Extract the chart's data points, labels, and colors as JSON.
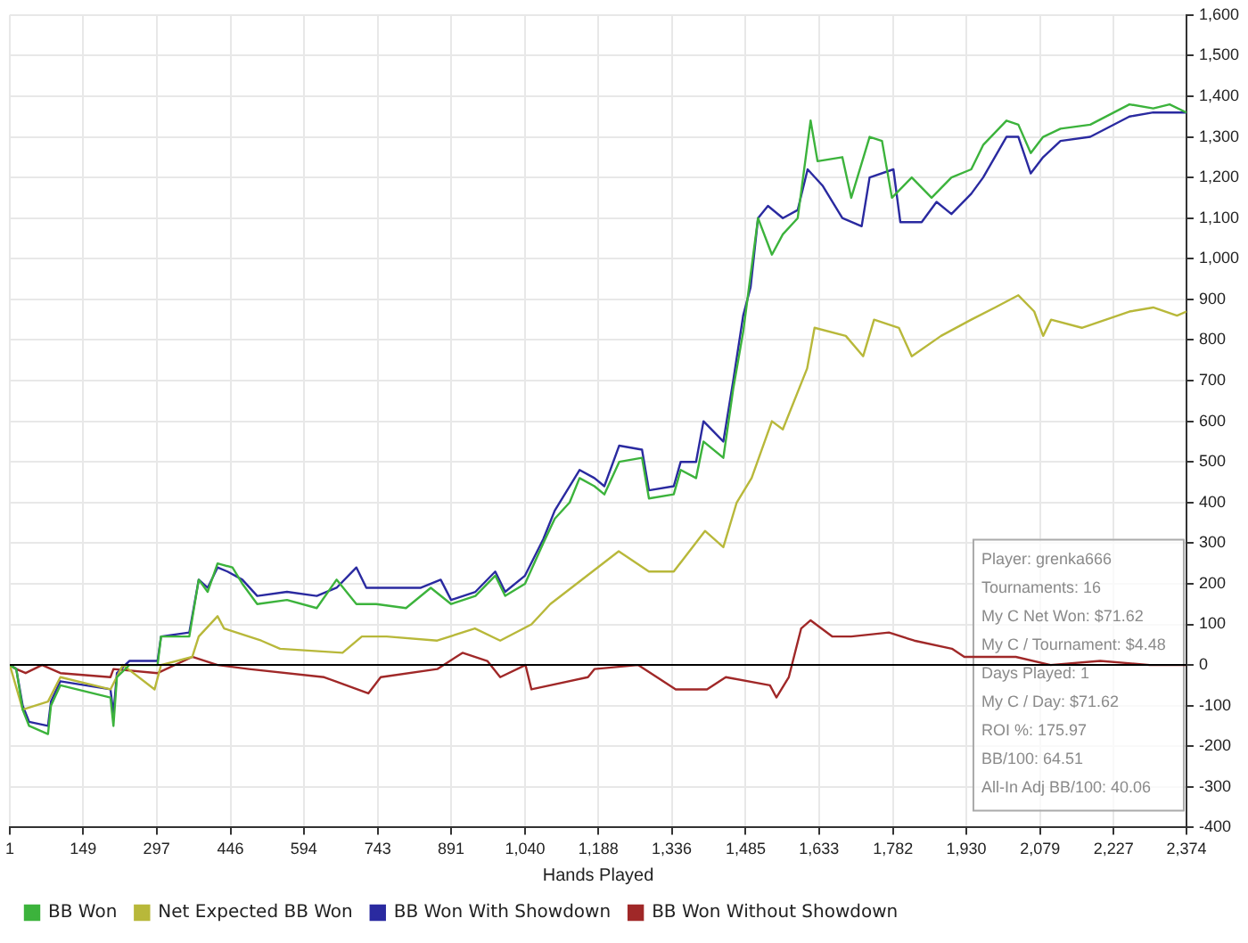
{
  "chart_data": {
    "type": "line",
    "xlabel": "Hands Played",
    "xlim": [
      1,
      2374
    ],
    "xticks": [
      1,
      149,
      297,
      446,
      594,
      743,
      891,
      {
        "value": 1040,
        "label": "1,040"
      },
      {
        "value": 1188,
        "label": "1,188"
      },
      {
        "value": 1336,
        "label": "1,336"
      },
      {
        "value": 1485,
        "label": "1,485"
      },
      {
        "value": 1633,
        "label": "1,633"
      },
      {
        "value": 1782,
        "label": "1,782"
      },
      {
        "value": 1930,
        "label": "1,930"
      },
      {
        "value": 2079,
        "label": "2,079"
      },
      {
        "value": 2227,
        "label": "2,227"
      },
      {
        "value": 2374,
        "label": "2,374"
      }
    ],
    "ylim": [
      -400,
      1600
    ],
    "yticks": [
      -400,
      -300,
      -200,
      -100,
      0,
      100,
      200,
      300,
      400,
      500,
      600,
      700,
      800,
      900,
      {
        "value": 1000,
        "label": "1,000"
      },
      {
        "value": 1100,
        "label": "1,100"
      },
      {
        "value": 1200,
        "label": "1,200"
      },
      {
        "value": 1300,
        "label": "1,300"
      },
      {
        "value": 1400,
        "label": "1,400"
      },
      {
        "value": 1500,
        "label": "1,500"
      },
      {
        "value": 1600,
        "label": "1,600"
      }
    ],
    "grid": true,
    "legend": "bottom",
    "marker": "none",
    "line_style": "solid",
    "ref_lines": [
      {
        "axis": "y",
        "value": 0,
        "color": "#000000"
      }
    ],
    "annotations": [
      "Player: grenka666",
      "Tournaments: 16",
      "My C Net Won: $71.62",
      "My C / Tournament: $4.48",
      "Days Played: 1",
      "My C / Day: $71.62",
      "ROI %: 175.97",
      "BB/100: 64.51",
      "All-In Adj BB/100: 40.06"
    ],
    "series": [
      {
        "name": "BB Won",
        "color": "#3cb33c",
        "x": [
          1,
          14,
          27,
          40,
          78,
          84,
          103,
          204,
          210,
          217,
          242,
          299,
          306,
          363,
          382,
          400,
          420,
          450,
          470,
          500,
          560,
          620,
          660,
          700,
          740,
          800,
          850,
          891,
          940,
          980,
          1000,
          1040,
          1077,
          1100,
          1130,
          1150,
          1180,
          1200,
          1230,
          1276,
          1290,
          1340,
          1354,
          1385,
          1400,
          1440,
          1460,
          1480,
          1495,
          1510,
          1538,
          1560,
          1590,
          1616,
          1630,
          1680,
          1698,
          1735,
          1760,
          1780,
          1820,
          1860,
          1900,
          1940,
          1964,
          2011,
          2035,
          2060,
          2085,
          2120,
          2180,
          2259,
          2307,
          2340,
          2374
        ],
        "values": [
          0,
          -10,
          -110,
          -150,
          -170,
          -100,
          -50,
          -80,
          -150,
          -30,
          0,
          0,
          70,
          70,
          210,
          180,
          250,
          240,
          200,
          150,
          160,
          140,
          210,
          150,
          150,
          140,
          190,
          150,
          170,
          220,
          170,
          200,
          300,
          360,
          400,
          460,
          440,
          420,
          500,
          510,
          410,
          420,
          480,
          460,
          550,
          510,
          680,
          820,
          960,
          1100,
          1010,
          1060,
          1100,
          1340,
          1240,
          1250,
          1150,
          1300,
          1290,
          1150,
          1200,
          1150,
          1200,
          1220,
          1280,
          1340,
          1330,
          1260,
          1300,
          1320,
          1330,
          1380,
          1370,
          1380,
          1360
        ]
      },
      {
        "name": "Net Expected BB Won",
        "color": "#b8b83a",
        "x": [
          1,
          27,
          78,
          103,
          204,
          229,
          293,
          306,
          369,
          382,
          420,
          433,
          508,
          546,
          672,
          711,
          761,
          863,
          939,
          990,
          1053,
          1091,
          1229,
          1290,
          1340,
          1403,
          1440,
          1467,
          1497,
          1538,
          1560,
          1609,
          1624,
          1687,
          1722,
          1744,
          1794,
          1820,
          1879,
          1940,
          1988,
          2035,
          2067,
          2085,
          2101,
          2163,
          2259,
          2307,
          2355,
          2374
        ],
        "values": [
          0,
          -110,
          -90,
          -30,
          -60,
          0,
          -60,
          0,
          20,
          70,
          120,
          90,
          60,
          40,
          30,
          70,
          70,
          60,
          90,
          60,
          100,
          150,
          280,
          230,
          230,
          330,
          290,
          400,
          460,
          600,
          580,
          730,
          830,
          810,
          760,
          850,
          830,
          760,
          810,
          850,
          880,
          910,
          870,
          810,
          850,
          830,
          870,
          880,
          860,
          870
        ]
      },
      {
        "name": "BB Won With Showdown",
        "color": "#2a2aa0",
        "x": [
          1,
          14,
          27,
          40,
          78,
          84,
          103,
          204,
          210,
          217,
          242,
          299,
          306,
          363,
          382,
          400,
          420,
          440,
          470,
          500,
          560,
          620,
          660,
          700,
          720,
          760,
          830,
          870,
          891,
          940,
          980,
          1000,
          1040,
          1077,
          1100,
          1130,
          1150,
          1180,
          1200,
          1230,
          1276,
          1290,
          1340,
          1354,
          1385,
          1400,
          1440,
          1460,
          1480,
          1495,
          1510,
          1530,
          1560,
          1590,
          1610,
          1640,
          1680,
          1719,
          1735,
          1783,
          1797,
          1840,
          1870,
          1900,
          1940,
          1964,
          2011,
          2035,
          2060,
          2085,
          2120,
          2180,
          2259,
          2307,
          2374
        ],
        "values": [
          0,
          -10,
          -100,
          -140,
          -150,
          -90,
          -40,
          -60,
          -120,
          -20,
          10,
          10,
          70,
          80,
          210,
          190,
          240,
          230,
          210,
          170,
          180,
          170,
          190,
          240,
          190,
          190,
          190,
          210,
          160,
          180,
          230,
          180,
          220,
          310,
          380,
          440,
          480,
          460,
          440,
          540,
          530,
          430,
          440,
          500,
          500,
          600,
          550,
          700,
          860,
          930,
          1100,
          1130,
          1100,
          1120,
          1220,
          1180,
          1100,
          1080,
          1200,
          1220,
          1090,
          1090,
          1140,
          1110,
          1160,
          1200,
          1300,
          1300,
          1210,
          1250,
          1290,
          1300,
          1350,
          1360,
          1360
        ]
      },
      {
        "name": "BB Won Without Showdown",
        "color": "#a02828",
        "x": [
          1,
          14,
          33,
          66,
          103,
          204,
          210,
          299,
          369,
          420,
          483,
          635,
          724,
          749,
          863,
          914,
          964,
          990,
          1041,
          1053,
          1167,
          1180,
          1268,
          1344,
          1407,
          1445,
          1534,
          1547,
          1572,
          1597,
          1616,
          1660,
          1698,
          1774,
          1825,
          1901,
          1926,
          2030,
          2100,
          2200,
          2300,
          2374
        ],
        "values": [
          0,
          -10,
          -20,
          0,
          -20,
          -30,
          -10,
          -20,
          20,
          0,
          -10,
          -30,
          -70,
          -30,
          -10,
          30,
          10,
          -30,
          0,
          -60,
          -30,
          -10,
          0,
          -60,
          -60,
          -30,
          -50,
          -80,
          -30,
          90,
          110,
          70,
          70,
          80,
          60,
          40,
          20,
          20,
          0,
          10,
          0,
          0
        ]
      }
    ]
  }
}
